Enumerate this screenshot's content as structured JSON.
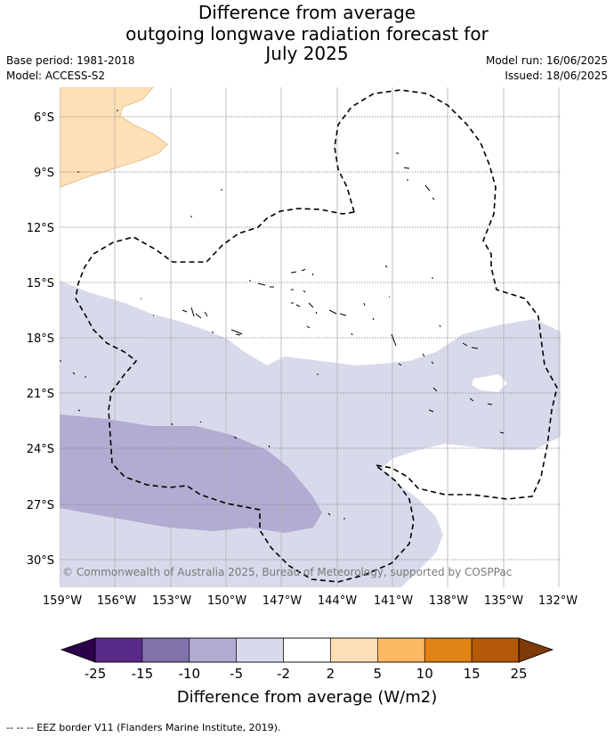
{
  "title": {
    "line1": "Difference from average",
    "line2": "outgoing longwave radiation forecast for",
    "line3": "July 2025"
  },
  "meta": {
    "base_period": "Base period: 1981-2018",
    "model": "Model: ACCESS-S2",
    "model_run": "Model run: 16/06/2025",
    "issued": "Issued: 18/06/2025"
  },
  "map": {
    "lon_ticks": [
      "159°W",
      "156°W",
      "153°W",
      "150°W",
      "147°W",
      "144°W",
      "141°W",
      "138°W",
      "135°W",
      "132°W"
    ],
    "lat_ticks": [
      "6°S",
      "9°S",
      "12°S",
      "15°S",
      "18°S",
      "21°S",
      "24°S",
      "27°S",
      "30°S"
    ],
    "copyright": "© Commonwealth of Australia 2025, Bureau of Meteorology, supported by COSPPac"
  },
  "colorbar": {
    "title": "Difference from average (W/m2)",
    "labels": [
      "-25",
      "-15",
      "-10",
      "-5",
      "-2",
      "2",
      "5",
      "10",
      "15",
      "25"
    ],
    "colors": [
      "#2d004b",
      "#5a2a8a",
      "#8073ac",
      "#b2abd2",
      "#d8daeb",
      "#ffffff",
      "#fee0b6",
      "#fdb863",
      "#e08214",
      "#b35806",
      "#7f3b08"
    ]
  },
  "footer": "--  --  -- EEZ border V11 (Flanders Marine Institute, 2019)."
}
